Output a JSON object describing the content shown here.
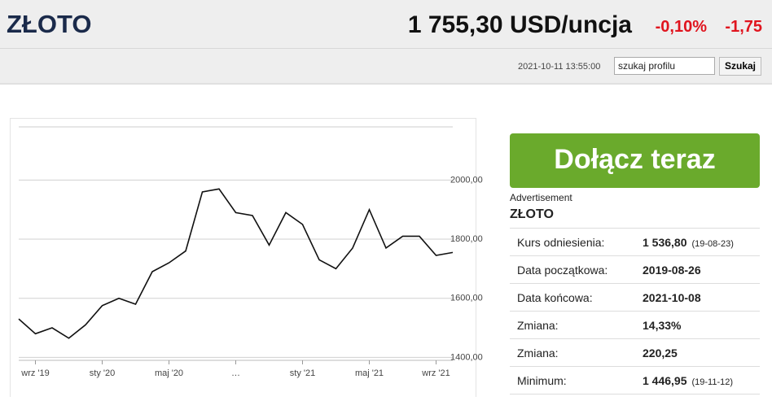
{
  "header": {
    "title": "ZŁOTO",
    "price": "1 755,30 USD/uncja",
    "change_pct": "-0,10%",
    "change_abs": "-1,75",
    "timestamp": "2021-10-11 13:55:00",
    "search_placeholder": "szukaj profilu",
    "search_button": "Szukaj"
  },
  "chart_data": {
    "type": "line",
    "color": "#111111",
    "x": [
      "2019-08",
      "2019-09",
      "2019-10",
      "2019-11",
      "2019-12",
      "2020-01",
      "2020-02",
      "2020-03",
      "2020-04",
      "2020-05",
      "2020-06",
      "2020-07",
      "2020-08",
      "2020-09",
      "2020-10",
      "2020-11",
      "2020-12",
      "2021-01",
      "2021-02",
      "2021-03",
      "2021-04",
      "2021-05",
      "2021-06",
      "2021-07",
      "2021-08",
      "2021-09",
      "2021-10"
    ],
    "values": [
      1530,
      1480,
      1500,
      1465,
      1510,
      1575,
      1600,
      1580,
      1690,
      1720,
      1760,
      1960,
      1970,
      1890,
      1880,
      1780,
      1890,
      1850,
      1730,
      1700,
      1770,
      1900,
      1770,
      1810,
      1810,
      1745,
      1755
    ],
    "xlim": [
      "2019-08",
      "2021-10"
    ],
    "xticks": [
      {
        "value": "2019-09",
        "label": "wrz '19"
      },
      {
        "value": "2020-01",
        "label": "sty '20"
      },
      {
        "value": "2020-05",
        "label": "maj '20"
      },
      {
        "value": "2020-09",
        "label": "…"
      },
      {
        "value": "2021-01",
        "label": "sty '21"
      },
      {
        "value": "2021-05",
        "label": "maj '21"
      },
      {
        "value": "2021-09",
        "label": "wrz '21"
      }
    ],
    "ylim": [
      1390,
      2180
    ],
    "yticks": [
      {
        "value": 1400,
        "label": "1400,00"
      },
      {
        "value": 1600,
        "label": "1600,00"
      },
      {
        "value": 1800,
        "label": "1800,00"
      },
      {
        "value": 2000,
        "label": "2000,00"
      }
    ],
    "grid": true
  },
  "sidebar": {
    "cta": "Dołącz teraz",
    "ad_label": "Advertisement",
    "title": "ZŁOTO",
    "rows": [
      [
        "Kurs odniesienia:",
        "1 536,80",
        "(19-08-23)"
      ],
      [
        "Data początkowa:",
        "2019-08-26"
      ],
      [
        "Data końcowa:",
        "2021-10-08"
      ],
      [
        "Zmiana:",
        "14,33%"
      ],
      [
        "Zmiana:",
        "220,25"
      ],
      [
        "Minimum:",
        "1 446,95",
        "(19-11-12)"
      ]
    ]
  }
}
